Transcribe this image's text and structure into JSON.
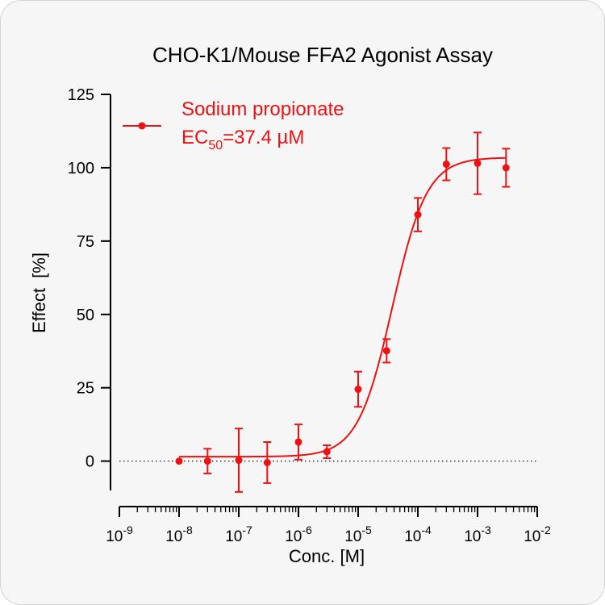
{
  "chart_data": {
    "type": "scatter",
    "title": "CHO-K1/Mouse FFA2 Agonist Assay",
    "xlabel": "Conc. [M]",
    "ylabel": "Effect  [%]",
    "x_scale": "log",
    "xlim": [
      1e-09,
      0.01
    ],
    "ylim": [
      -10,
      125
    ],
    "x_ticks": [
      {
        "base": "10",
        "exp": "-9"
      },
      {
        "base": "10",
        "exp": "-8"
      },
      {
        "base": "10",
        "exp": "-7"
      },
      {
        "base": "10",
        "exp": "-6"
      },
      {
        "base": "10",
        "exp": "-5"
      },
      {
        "base": "10",
        "exp": "-4"
      },
      {
        "base": "10",
        "exp": "-3"
      },
      {
        "base": "10",
        "exp": "-2"
      }
    ],
    "y_ticks": [
      0,
      25,
      50,
      75,
      100,
      125
    ],
    "grid": false,
    "baseline": {
      "y": 0,
      "style": "dotted",
      "color": "#333333"
    },
    "legend": {
      "placement": "top-left",
      "series_label": "Sodium propionate",
      "ec50_prefix": "EC",
      "ec50_subscript": "50",
      "ec50_value": "=37.4 µM"
    },
    "color": "#ee1111",
    "series": [
      {
        "name": "Sodium propionate",
        "x": [
          1e-08,
          3e-08,
          1e-07,
          3e-07,
          1e-06,
          3e-06,
          1e-05,
          3e-05,
          0.0001,
          0.0003,
          0.001,
          0.003
        ],
        "y": [
          0,
          0,
          0.3,
          -0.5,
          6.5,
          3.2,
          24.5,
          37.6,
          84,
          101.2,
          101.5,
          100
        ],
        "error": [
          0,
          4.2,
          10.8,
          7,
          6,
          2.2,
          6,
          4,
          5.7,
          5.5,
          10.5,
          6.5
        ]
      }
    ],
    "fit": {
      "model": "4PL",
      "bottom": 1.5,
      "top": 103.5,
      "ec50": 3.74e-05,
      "hill": 1.5
    }
  }
}
